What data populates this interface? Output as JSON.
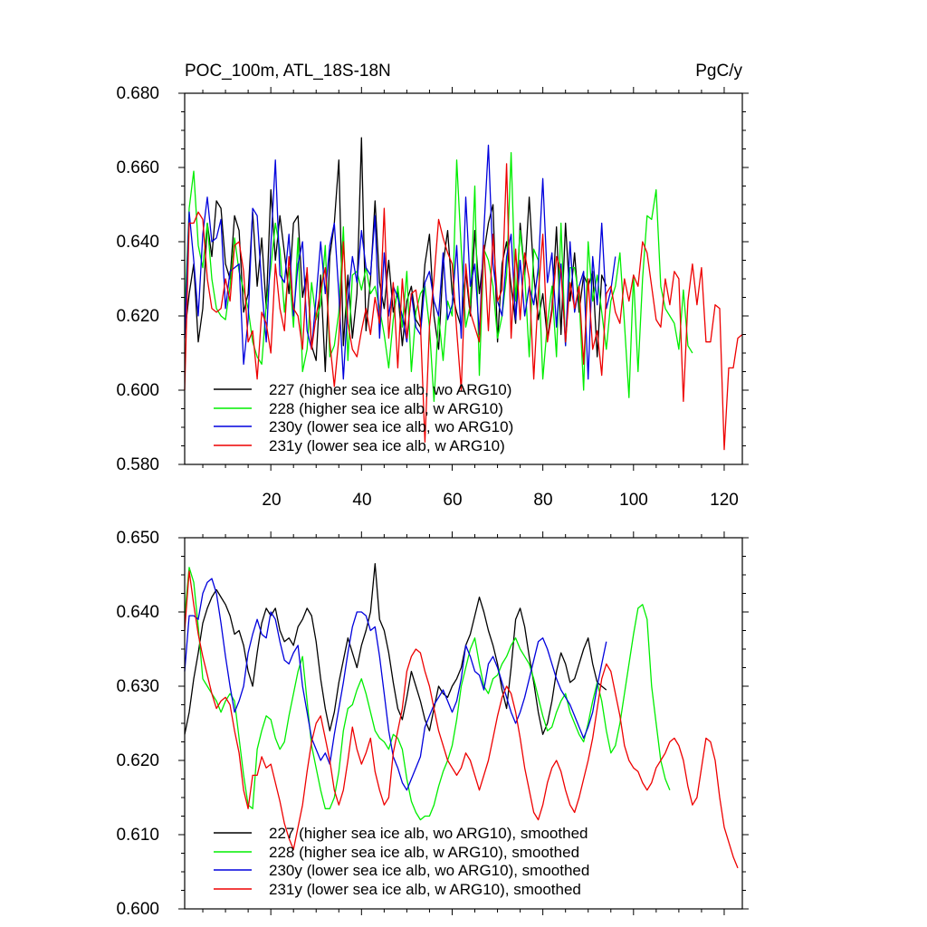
{
  "chart_data": [
    {
      "type": "line",
      "title": "POC_100m, ATL_18S-18N",
      "units": "PgC/y",
      "xlabel": "",
      "ylabel": "",
      "xlim": [
        1,
        124
      ],
      "ylim": [
        0.58,
        0.68
      ],
      "x_ticks": [
        "20",
        "40",
        "60",
        "80",
        "100",
        "120"
      ],
      "y_ticks": [
        "0.580",
        "0.600",
        "0.620",
        "0.640",
        "0.660",
        "0.680"
      ],
      "legend_position": "bottom-left inside",
      "series": [
        {
          "name": "227 (higher sea ice alb, wo ARG10)",
          "color": "#000000",
          "values": [
            0.615,
            0.626,
            0.634,
            0.613,
            0.622,
            0.645,
            0.636,
            0.651,
            0.649,
            0.634,
            0.63,
            0.647,
            0.643,
            0.621,
            0.626,
            0.648,
            0.628,
            0.641,
            0.622,
            0.654,
            0.635,
            0.647,
            0.637,
            0.626,
            0.645,
            0.647,
            0.625,
            0.632,
            0.612,
            0.608,
            0.631,
            0.605,
            0.636,
            0.645,
            0.662,
            0.612,
            0.631,
            0.614,
            0.626,
            0.668,
            0.616,
            0.63,
            0.651,
            0.629,
            0.622,
            0.635,
            0.621,
            0.627,
            0.612,
            0.624,
            0.628,
            0.619,
            0.617,
            0.634,
            0.642,
            0.62,
            0.611,
            0.634,
            0.643,
            0.626,
            0.621,
            0.617,
            0.632,
            0.62,
            0.643,
            0.626,
            0.637,
            0.645,
            0.65,
            0.613,
            0.634,
            0.64,
            0.628,
            0.618,
            0.645,
            0.631,
            0.652,
            0.631,
            0.619,
            0.626,
            0.614,
            0.622,
            0.644,
            0.615,
            0.645,
            0.624,
            0.637,
            0.621,
            0.631,
            0.628,
            0.632,
            0.609,
            0.631,
            0.628
          ]
        },
        {
          "name": "228 (higher sea ice alb, w ARG10)",
          "color": "#00ee00",
          "values": [
            0.62,
            0.649,
            0.659,
            0.639,
            0.633,
            0.645,
            0.63,
            0.622,
            0.62,
            0.619,
            0.628,
            0.641,
            0.632,
            0.627,
            0.622,
            0.613,
            0.609,
            0.607,
            0.623,
            0.633,
            0.645,
            0.638,
            0.621,
            0.633,
            0.617,
            0.641,
            0.605,
            0.611,
            0.629,
            0.619,
            0.623,
            0.639,
            0.609,
            0.612,
            0.621,
            0.644,
            0.608,
            0.631,
            0.632,
            0.627,
            0.633,
            0.626,
            0.628,
            0.622,
            0.615,
            0.606,
            0.619,
            0.628,
            0.617,
            0.632,
            0.605,
            0.621,
            0.626,
            0.628,
            0.617,
            0.597,
            0.62,
            0.608,
            0.624,
            0.62,
            0.662,
            0.638,
            0.617,
            0.623,
            0.655,
            0.604,
            0.638,
            0.635,
            0.628,
            0.614,
            0.62,
            0.631,
            0.664,
            0.624,
            0.643,
            0.631,
            0.609,
            0.638,
            0.635,
            0.603,
            0.618,
            0.628,
            0.609,
            0.645,
            0.612,
            0.633,
            0.633,
            0.625,
            0.6,
            0.64,
            0.624,
            0.631,
            0.621,
            0.611,
            0.624,
            0.628,
            0.637,
            0.618,
            0.598,
            0.631,
            0.605,
            0.63,
            0.647,
            0.646,
            0.654,
            0.628,
            0.622,
            0.62,
            0.618,
            0.611,
            0.627,
            0.612,
            0.61
          ]
        },
        {
          "name": "230y (lower sea ice alb, wo ARG10)",
          "color": "#0000dd",
          "values": [
            0.614,
            0.648,
            0.635,
            0.62,
            0.642,
            0.652,
            0.64,
            0.641,
            0.646,
            0.622,
            0.632,
            0.633,
            0.634,
            0.607,
            0.619,
            0.649,
            0.647,
            0.628,
            0.613,
            0.639,
            0.662,
            0.631,
            0.629,
            0.642,
            0.62,
            0.634,
            0.64,
            0.616,
            0.611,
            0.625,
            0.64,
            0.626,
            0.639,
            0.645,
            0.626,
            0.603,
            0.624,
            0.636,
            0.629,
            0.643,
            0.633,
            0.631,
            0.647,
            0.614,
            0.637,
            0.62,
            0.628,
            0.625,
            0.62,
            0.613,
            0.626,
            0.617,
            0.615,
            0.629,
            0.632,
            0.624,
            0.62,
            0.637,
            0.619,
            0.623,
            0.639,
            0.614,
            0.652,
            0.628,
            0.634,
            0.615,
            0.643,
            0.666,
            0.634,
            0.624,
            0.62,
            0.636,
            0.642,
            0.619,
            0.635,
            0.62,
            0.628,
            0.623,
            0.633,
            0.657,
            0.629,
            0.637,
            0.617,
            0.634,
            0.612,
            0.64,
            0.621,
            0.628,
            0.632,
            0.603,
            0.636,
            0.623,
            0.645,
            0.622,
            0.627,
            0.636
          ]
        },
        {
          "name": "231y (lower sea ice alb, w ARG10)",
          "color": "#ee0000",
          "values": [
            0.6,
            0.645,
            0.645,
            0.648,
            0.646,
            0.63,
            0.622,
            0.621,
            0.622,
            0.63,
            0.624,
            0.639,
            0.64,
            0.632,
            0.613,
            0.616,
            0.603,
            0.621,
            0.618,
            0.61,
            0.634,
            0.622,
            0.616,
            0.636,
            0.622,
            0.62,
            0.611,
            0.633,
            0.611,
            0.62,
            0.627,
            0.633,
            0.613,
            0.601,
            0.614,
            0.64,
            0.618,
            0.611,
            0.609,
            0.616,
            0.622,
            0.615,
            0.625,
            0.618,
            0.649,
            0.614,
            0.629,
            0.606,
            0.63,
            0.614,
            0.626,
            0.627,
            0.618,
            0.586,
            0.617,
            0.63,
            0.646,
            0.641,
            0.637,
            0.634,
            0.616,
            0.6,
            0.634,
            0.621,
            0.617,
            0.613,
            0.639,
            0.616,
            0.642,
            0.624,
            0.627,
            0.661,
            0.614,
            0.638,
            0.619,
            0.637,
            0.63,
            0.603,
            0.626,
            0.642,
            0.613,
            0.621,
            0.636,
            0.632,
            0.613,
            0.629,
            0.622,
            0.628,
            0.607,
            0.63,
            0.611,
            0.616,
            0.604,
            0.626,
            0.628,
            0.621,
            0.618,
            0.63,
            0.624,
            0.631,
            0.628,
            0.64,
            0.637,
            0.628,
            0.619,
            0.617,
            0.63,
            0.623,
            0.632,
            0.63,
            0.597,
            0.624,
            0.634,
            0.623,
            0.633,
            0.613,
            0.613,
            0.623,
            0.622,
            0.584,
            0.606,
            0.606,
            0.614,
            0.615
          ]
        }
      ]
    },
    {
      "type": "line",
      "title": "",
      "units": "",
      "xlabel": "",
      "ylabel": "",
      "xlim": [
        1,
        124
      ],
      "ylim": [
        0.6,
        0.65
      ],
      "x_ticks": [],
      "y_ticks": [
        "0.600",
        "0.610",
        "0.620",
        "0.630",
        "0.640",
        "0.650"
      ],
      "legend_position": "bottom-left inside",
      "series": [
        {
          "name": "227 (higher sea ice alb, wo ARG10), smoothed",
          "color": "#000000",
          "values": [
            0.6235,
            0.6265,
            0.631,
            0.6345,
            0.6385,
            0.6405,
            0.642,
            0.643,
            0.642,
            0.641,
            0.6395,
            0.637,
            0.6375,
            0.6355,
            0.632,
            0.63,
            0.6345,
            0.6385,
            0.6405,
            0.6395,
            0.6405,
            0.6375,
            0.636,
            0.6365,
            0.6355,
            0.638,
            0.639,
            0.6405,
            0.6395,
            0.636,
            0.631,
            0.627,
            0.624,
            0.6265,
            0.6305,
            0.6335,
            0.6365,
            0.6345,
            0.6325,
            0.6355,
            0.6375,
            0.64,
            0.6465,
            0.639,
            0.6375,
            0.6345,
            0.6305,
            0.627,
            0.6255,
            0.6285,
            0.632,
            0.63,
            0.628,
            0.6255,
            0.624,
            0.627,
            0.63,
            0.629,
            0.6285,
            0.63,
            0.631,
            0.6325,
            0.6355,
            0.637,
            0.6395,
            0.642,
            0.64,
            0.6375,
            0.6355,
            0.633,
            0.6295,
            0.627,
            0.6325,
            0.639,
            0.6405,
            0.638,
            0.634,
            0.6305,
            0.6265,
            0.6235,
            0.625,
            0.628,
            0.632,
            0.6345,
            0.633,
            0.6305,
            0.631,
            0.633,
            0.635,
            0.6365,
            0.633,
            0.6305,
            0.63,
            0.6295
          ]
        },
        {
          "name": "228 (higher sea ice alb, w ARG10), smoothed",
          "color": "#00ee00",
          "values": [
            0.6395,
            0.646,
            0.644,
            0.638,
            0.631,
            0.63,
            0.629,
            0.628,
            0.6265,
            0.628,
            0.629,
            0.628,
            0.623,
            0.618,
            0.614,
            0.6135,
            0.6215,
            0.624,
            0.626,
            0.6255,
            0.623,
            0.6215,
            0.6225,
            0.626,
            0.629,
            0.632,
            0.634,
            0.628,
            0.622,
            0.619,
            0.616,
            0.6135,
            0.6135,
            0.615,
            0.6185,
            0.624,
            0.627,
            0.6275,
            0.6295,
            0.631,
            0.629,
            0.6265,
            0.624,
            0.623,
            0.6225,
            0.6215,
            0.6235,
            0.623,
            0.6215,
            0.6175,
            0.6145,
            0.613,
            0.612,
            0.6125,
            0.6125,
            0.614,
            0.6165,
            0.6185,
            0.62,
            0.622,
            0.6255,
            0.63,
            0.6325,
            0.635,
            0.6365,
            0.633,
            0.63,
            0.629,
            0.631,
            0.6315,
            0.633,
            0.634,
            0.6355,
            0.6365,
            0.635,
            0.634,
            0.633,
            0.631,
            0.6285,
            0.626,
            0.624,
            0.6245,
            0.6265,
            0.628,
            0.629,
            0.6265,
            0.625,
            0.6235,
            0.6225,
            0.625,
            0.628,
            0.6305,
            0.628,
            0.624,
            0.621,
            0.622,
            0.625,
            0.629,
            0.633,
            0.637,
            0.6405,
            0.641,
            0.639,
            0.63,
            0.625,
            0.62,
            0.6175,
            0.616
          ]
        },
        {
          "name": "230y (lower sea ice alb, wo ARG10), smoothed",
          "color": "#0000dd",
          "values": [
            0.632,
            0.6395,
            0.6395,
            0.639,
            0.6425,
            0.644,
            0.6445,
            0.6425,
            0.6385,
            0.634,
            0.63,
            0.6265,
            0.628,
            0.63,
            0.6345,
            0.637,
            0.639,
            0.637,
            0.6365,
            0.64,
            0.639,
            0.636,
            0.6335,
            0.633,
            0.6345,
            0.6355,
            0.63,
            0.6265,
            0.623,
            0.6215,
            0.62,
            0.621,
            0.6195,
            0.6235,
            0.627,
            0.6305,
            0.6345,
            0.638,
            0.64,
            0.64,
            0.6395,
            0.6375,
            0.638,
            0.634,
            0.629,
            0.624,
            0.6205,
            0.619,
            0.617,
            0.616,
            0.6175,
            0.619,
            0.6205,
            0.6245,
            0.626,
            0.6275,
            0.6285,
            0.6295,
            0.628,
            0.6265,
            0.628,
            0.631,
            0.6355,
            0.634,
            0.632,
            0.6315,
            0.6295,
            0.633,
            0.634,
            0.6325,
            0.6305,
            0.6285,
            0.6265,
            0.625,
            0.6265,
            0.6285,
            0.631,
            0.6335,
            0.636,
            0.6365,
            0.635,
            0.633,
            0.631,
            0.6295,
            0.6285,
            0.6275,
            0.626,
            0.6245,
            0.623,
            0.6245,
            0.6265,
            0.63,
            0.633,
            0.636
          ]
        },
        {
          "name": "231y (lower sea ice alb, w ARG10), smoothed",
          "color": "#ee0000",
          "values": [
            0.6375,
            0.6455,
            0.641,
            0.637,
            0.634,
            0.6315,
            0.629,
            0.627,
            0.628,
            0.6285,
            0.6275,
            0.624,
            0.621,
            0.616,
            0.6135,
            0.618,
            0.618,
            0.6205,
            0.619,
            0.6195,
            0.617,
            0.6145,
            0.6115,
            0.6095,
            0.608,
            0.611,
            0.614,
            0.6185,
            0.6225,
            0.625,
            0.626,
            0.623,
            0.62,
            0.616,
            0.614,
            0.616,
            0.62,
            0.6245,
            0.6215,
            0.6195,
            0.621,
            0.623,
            0.6185,
            0.616,
            0.614,
            0.615,
            0.621,
            0.624,
            0.627,
            0.632,
            0.634,
            0.635,
            0.6345,
            0.632,
            0.63,
            0.627,
            0.624,
            0.622,
            0.62,
            0.619,
            0.618,
            0.619,
            0.621,
            0.62,
            0.618,
            0.616,
            0.618,
            0.62,
            0.623,
            0.626,
            0.6285,
            0.63,
            0.629,
            0.6265,
            0.623,
            0.619,
            0.616,
            0.613,
            0.612,
            0.614,
            0.617,
            0.619,
            0.62,
            0.6185,
            0.616,
            0.614,
            0.613,
            0.615,
            0.6175,
            0.62,
            0.623,
            0.627,
            0.631,
            0.633,
            0.632,
            0.629,
            0.626,
            0.622,
            0.62,
            0.619,
            0.6185,
            0.617,
            0.616,
            0.617,
            0.619,
            0.62,
            0.621,
            0.6225,
            0.623,
            0.622,
            0.62,
            0.6165,
            0.614,
            0.615,
            0.619,
            0.623,
            0.6225,
            0.62,
            0.615,
            0.611,
            0.609,
            0.607,
            0.6055
          ]
        }
      ]
    }
  ]
}
